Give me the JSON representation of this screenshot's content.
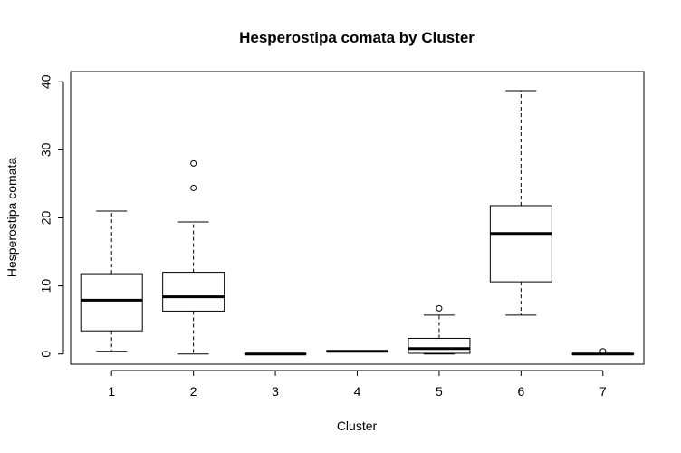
{
  "chart_data": {
    "type": "boxplot",
    "title": "Hesperostipa comata by Cluster",
    "xlabel": "Cluster",
    "ylabel": "Hesperostipa comata",
    "ylim": [
      -1.5,
      41.5
    ],
    "yticks": [
      0,
      10,
      20,
      30,
      40
    ],
    "categories": [
      "1",
      "2",
      "3",
      "4",
      "5",
      "6",
      "7"
    ],
    "boxes": [
      {
        "category": "1",
        "whisker_low": 0.4,
        "q1": 3.4,
        "median": 7.9,
        "q3": 11.8,
        "whisker_high": 21.0,
        "outliers": []
      },
      {
        "category": "2",
        "whisker_low": 0.0,
        "q1": 6.3,
        "median": 8.4,
        "q3": 12.0,
        "whisker_high": 19.4,
        "outliers": [
          24.4,
          28.0
        ]
      },
      {
        "category": "3",
        "whisker_low": 0.0,
        "q1": 0.0,
        "median": 0.0,
        "q3": 0.0,
        "whisker_high": 0.0,
        "outliers": []
      },
      {
        "category": "4",
        "whisker_low": 0.4,
        "q1": 0.4,
        "median": 0.4,
        "q3": 0.4,
        "whisker_high": 0.4,
        "outliers": []
      },
      {
        "category": "5",
        "whisker_low": 0.0,
        "q1": 0.1,
        "median": 0.8,
        "q3": 2.3,
        "whisker_high": 5.7,
        "outliers": [
          6.7
        ]
      },
      {
        "category": "6",
        "whisker_low": 5.7,
        "q1": 10.6,
        "median": 17.7,
        "q3": 21.8,
        "whisker_high": 38.7,
        "outliers": []
      },
      {
        "category": "7",
        "whisker_low": 0.0,
        "q1": 0.0,
        "median": 0.0,
        "q3": 0.0,
        "whisker_high": 0.0,
        "outliers": [
          0.4
        ]
      }
    ]
  }
}
